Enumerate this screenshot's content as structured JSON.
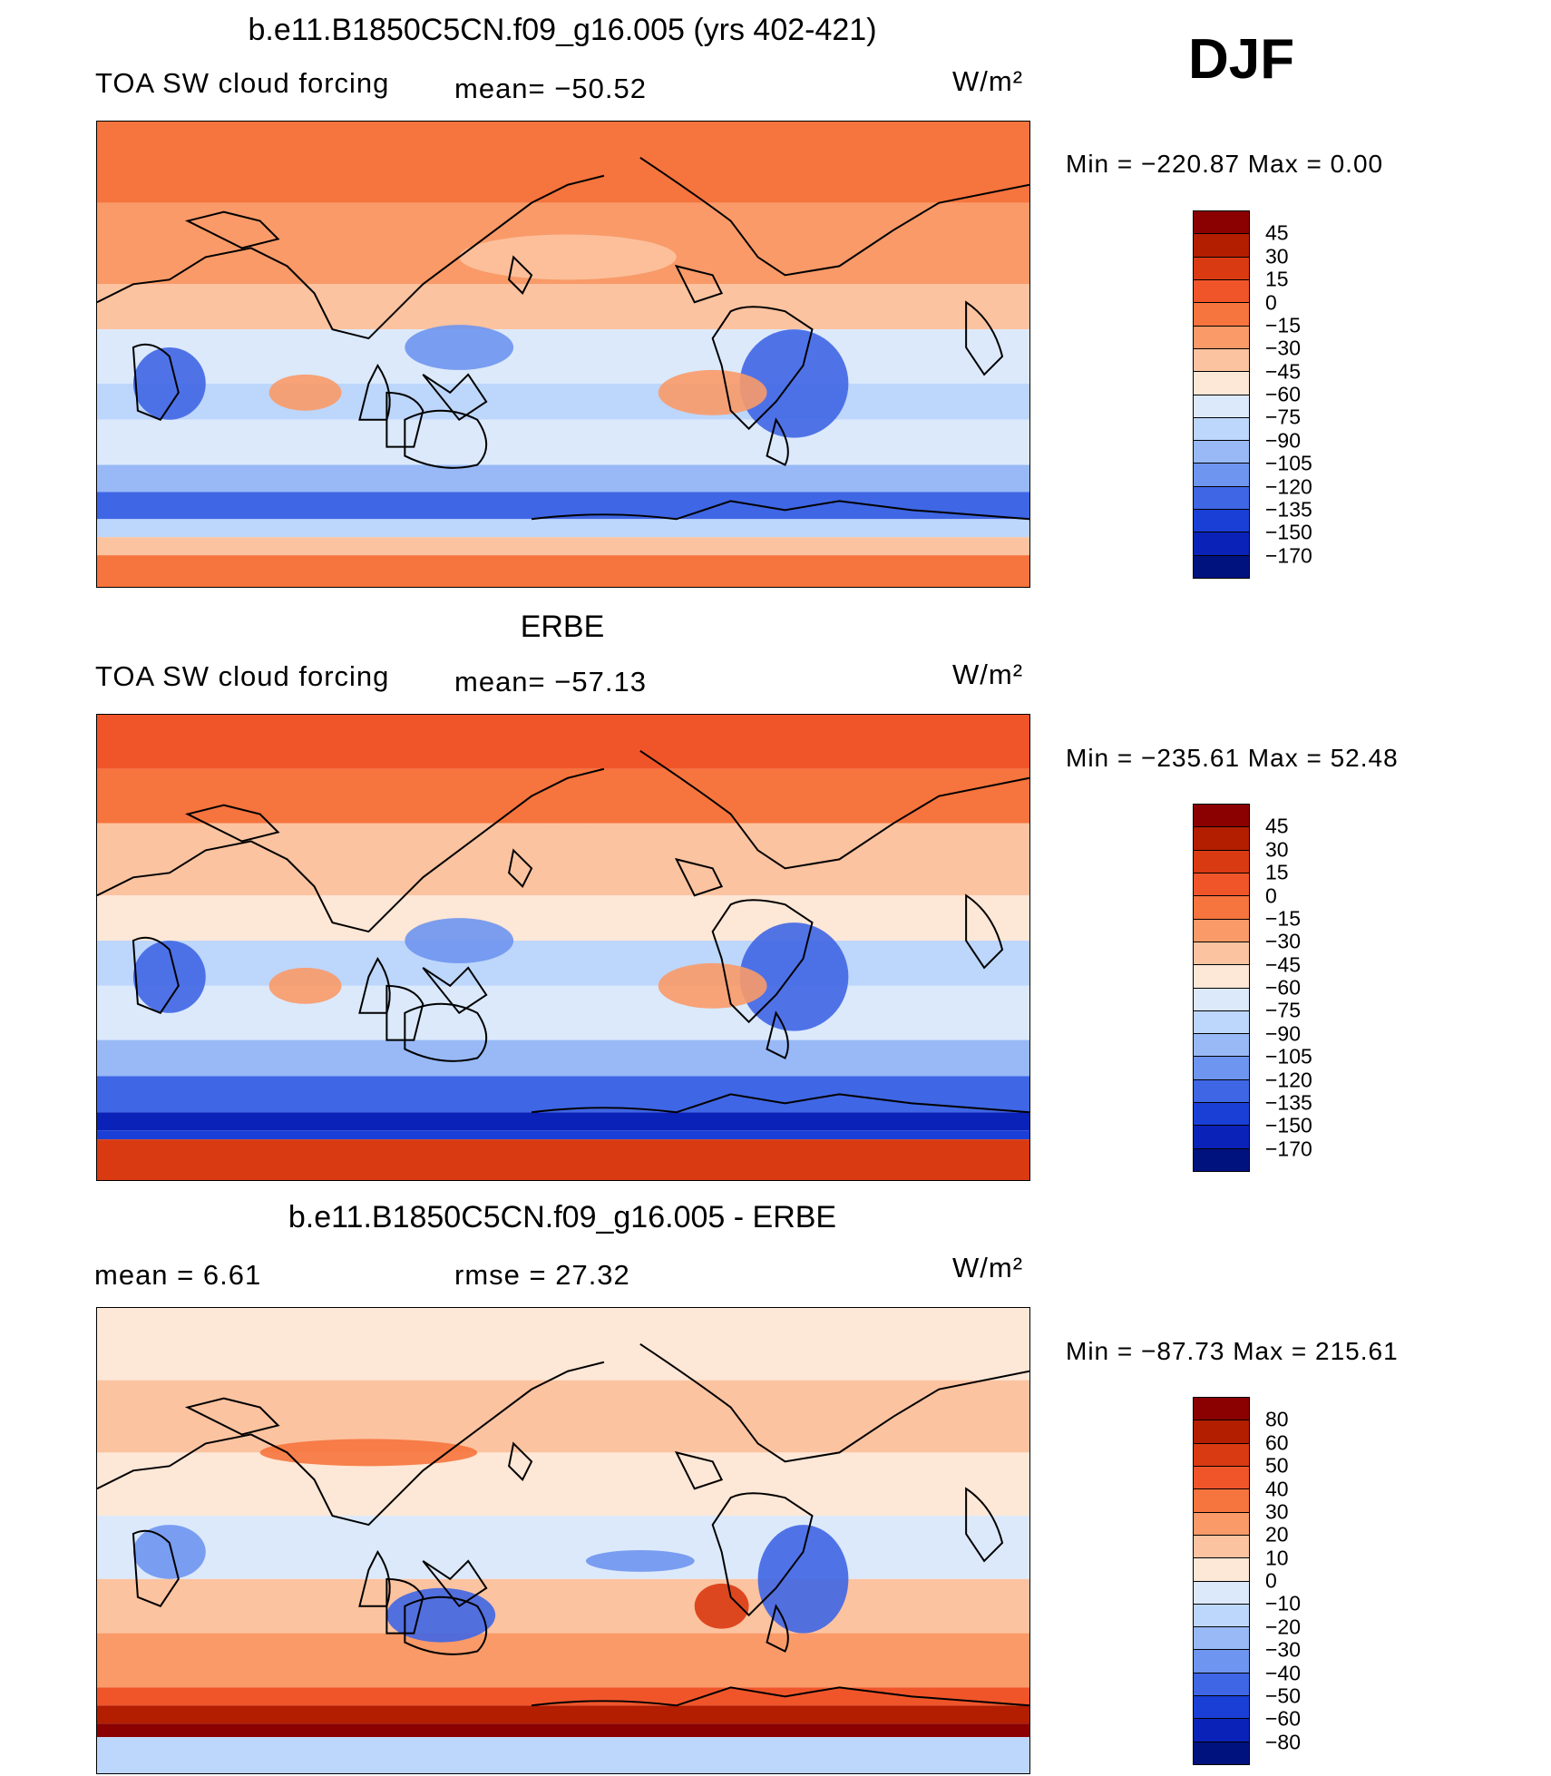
{
  "season": "DJF",
  "panels": [
    {
      "title": "b.e11.B1850C5CN.f09_g16.005 (yrs 402-421)",
      "left_label": "TOA SW cloud forcing",
      "mid_label": "mean= −50.52",
      "units": "W/m²",
      "min_max": "Min = −220.87 Max = 0.00",
      "levels": [
        "45",
        "30",
        "15",
        "0",
        "−15",
        "−30",
        "−45",
        "−60",
        "−75",
        "−90",
        "−105",
        "−120",
        "−135",
        "−150",
        "−170"
      ],
      "colors": [
        "#8b0000",
        "#b31d00",
        "#d93a12",
        "#f0552a",
        "#f6743d",
        "#f99a68",
        "#fcc3a0",
        "#fde7d6",
        "#dbe9fb",
        "#bdd6fb",
        "#98b9f6",
        "#6e95ef",
        "#3f66e4",
        "#1a3fd6",
        "#0b22b8",
        "#00127e"
      ]
    },
    {
      "title": "ERBE",
      "left_label": "TOA SW cloud forcing",
      "mid_label": "mean= −57.13",
      "units": "W/m²",
      "min_max": "Min = −235.61 Max = 52.48",
      "levels": [
        "45",
        "30",
        "15",
        "0",
        "−15",
        "−30",
        "−45",
        "−60",
        "−75",
        "−90",
        "−105",
        "−120",
        "−135",
        "−150",
        "−170"
      ],
      "colors": [
        "#8b0000",
        "#b31d00",
        "#d93a12",
        "#f0552a",
        "#f6743d",
        "#f99a68",
        "#fcc3a0",
        "#fde7d6",
        "#dbe9fb",
        "#bdd6fb",
        "#98b9f6",
        "#6e95ef",
        "#3f66e4",
        "#1a3fd6",
        "#0b22b8",
        "#00127e"
      ]
    },
    {
      "title": "b.e11.B1850C5CN.f09_g16.005 - ERBE",
      "left_label": "mean = 6.61",
      "mid_label": "rmse = 27.32",
      "units": "W/m²",
      "min_max": "Min = −87.73 Max = 215.61",
      "levels": [
        "80",
        "60",
        "50",
        "40",
        "30",
        "20",
        "10",
        "0",
        "−10",
        "−20",
        "−30",
        "−40",
        "−50",
        "−60",
        "−80"
      ],
      "colors": [
        "#8b0000",
        "#b31d00",
        "#d93a12",
        "#f0552a",
        "#f6743d",
        "#f99a68",
        "#fcc3a0",
        "#fde7d6",
        "#dbe9fb",
        "#bdd6fb",
        "#98b9f6",
        "#6e95ef",
        "#3f66e4",
        "#1a3fd6",
        "#0b22b8",
        "#00127e"
      ]
    }
  ]
}
